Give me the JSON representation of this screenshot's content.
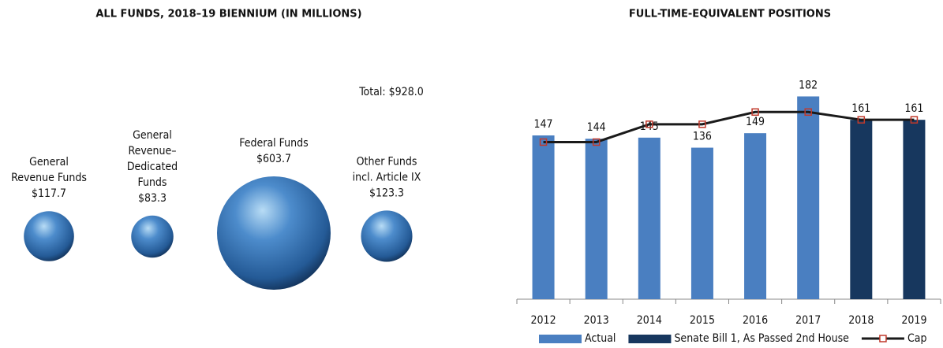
{
  "chart_data": [
    {
      "type": "bubble",
      "title": "ALL FUNDS, 2018–19 BIENNIUM (IN MILLIONS)",
      "annotation": "Total: $928.0",
      "categories": [
        [
          "General",
          "Revenue Funds"
        ],
        [
          "General",
          "Revenue–",
          "Dedicated",
          "Funds"
        ],
        [
          "Federal Funds"
        ],
        [
          "Other Funds",
          "incl. Article IX"
        ]
      ],
      "values": [
        117.7,
        83.3,
        603.7,
        123.3
      ],
      "value_labels": [
        "$117.7",
        "$83.3",
        "$603.7",
        "$123.3"
      ],
      "color": "#3a6fb0"
    },
    {
      "type": "bar",
      "title": "FULL-TIME-EQUIVALENT POSITIONS",
      "categories": [
        "2012",
        "2013",
        "2014",
        "2015",
        "2016",
        "2017",
        "2018",
        "2019"
      ],
      "series": [
        {
          "name": "Actual",
          "type": "bar",
          "color": "#4a7fc1",
          "values": [
            147,
            144,
            145,
            136,
            149,
            182,
            null,
            null
          ]
        },
        {
          "name": "Senate Bill 1, As Passed 2nd House",
          "type": "bar",
          "color": "#17375e",
          "values": [
            null,
            null,
            null,
            null,
            null,
            null,
            161,
            161
          ]
        },
        {
          "name": "Cap",
          "type": "line",
          "color": "#1a1a1a",
          "marker_color": "#c0392b",
          "values": [
            141,
            141,
            157,
            157,
            168,
            168,
            161,
            161
          ]
        }
      ],
      "ylim": [
        0,
        200
      ],
      "legend": "bottom"
    }
  ]
}
